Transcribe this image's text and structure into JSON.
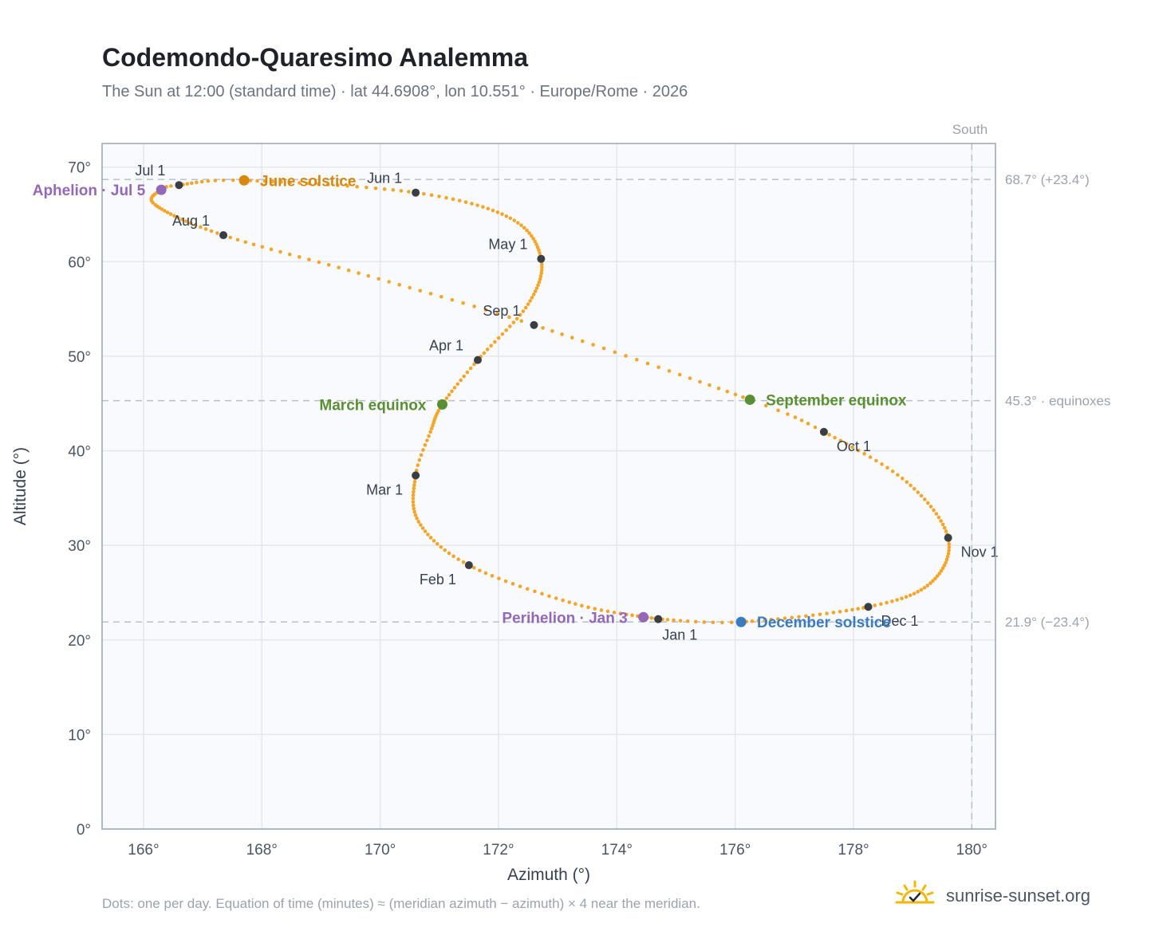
{
  "header": {
    "title": "Codemondo-Quaresimo Analemma",
    "subtitle": "The Sun at 12:00 (standard time) · lat 44.6908°, lon 10.551° · Europe/Rome · 2026"
  },
  "footer": {
    "note": "Dots: one per day. Equation of time (minutes) ≈ (meridian azimuth − azimuth) × 4 near the meridian.",
    "brand": "sunrise-sunset.org"
  },
  "colors": {
    "path": "#f4a52a",
    "month": "#3a3d44",
    "solstice_june": "#d6890e",
    "equinox": "#5a8f32",
    "solstice_december": "#3b7cc0",
    "apsis": "#9468b8",
    "plot_bg": "#f8fafd",
    "grid": "#e3e7ee",
    "frame": "#9aa5b5",
    "ref_line": "#b8c0cb"
  },
  "chart_data": {
    "type": "scatter",
    "title": "Codemondo-Quaresimo Analemma",
    "xlabel": "Azimuth (°)",
    "ylabel": "Altitude (°)",
    "xlim": [
      165.3,
      180.4
    ],
    "ylim": [
      0,
      72.5
    ],
    "x_ticks": [
      166,
      168,
      170,
      172,
      174,
      176,
      178,
      180
    ],
    "x_tick_labels": [
      "166°",
      "168°",
      "170°",
      "172°",
      "174°",
      "176°",
      "178°",
      "180°"
    ],
    "y_ticks": [
      0,
      10,
      20,
      30,
      40,
      50,
      60,
      70
    ],
    "y_tick_labels": [
      "0°",
      "10°",
      "20°",
      "30°",
      "40°",
      "50°",
      "60°",
      "70°"
    ],
    "grid": true,
    "south_label": "South",
    "south_azimuth": 180,
    "reference_lines": [
      {
        "altitude": 68.7,
        "label": "68.7° (+23.4°)"
      },
      {
        "altitude": 45.3,
        "label": "45.3° · equinoxes"
      },
      {
        "altitude": 21.9,
        "label": "21.9° (−23.4°)"
      }
    ],
    "daily_path_anchors": [
      {
        "day": 0,
        "az": 174.7,
        "alt": 22.2
      },
      {
        "day": 15,
        "az": 173.3,
        "alt": 23.8
      },
      {
        "day": 31,
        "az": 171.5,
        "alt": 27.9
      },
      {
        "day": 45,
        "az": 170.65,
        "alt": 32.5
      },
      {
        "day": 59,
        "az": 170.6,
        "alt": 37.4
      },
      {
        "day": 68,
        "az": 170.85,
        "alt": 42.0
      },
      {
        "day": 78,
        "az": 171.05,
        "alt": 44.9
      },
      {
        "day": 90,
        "az": 171.65,
        "alt": 49.6
      },
      {
        "day": 105,
        "az": 172.5,
        "alt": 55.5
      },
      {
        "day": 120,
        "az": 172.72,
        "alt": 60.3
      },
      {
        "day": 135,
        "az": 172.2,
        "alt": 64.6
      },
      {
        "day": 151,
        "az": 170.6,
        "alt": 67.3
      },
      {
        "day": 171,
        "az": 167.7,
        "alt": 68.6
      },
      {
        "day": 181,
        "az": 166.6,
        "alt": 68.1
      },
      {
        "day": 185,
        "az": 166.3,
        "alt": 67.6
      },
      {
        "day": 195,
        "az": 166.2,
        "alt": 66.0
      },
      {
        "day": 212,
        "az": 167.35,
        "alt": 62.8
      },
      {
        "day": 228,
        "az": 169.8,
        "alt": 58.5
      },
      {
        "day": 243,
        "az": 172.6,
        "alt": 53.3
      },
      {
        "day": 265,
        "az": 176.25,
        "alt": 45.4
      },
      {
        "day": 273,
        "az": 177.5,
        "alt": 42.0
      },
      {
        "day": 288,
        "az": 178.9,
        "alt": 36.7
      },
      {
        "day": 304,
        "az": 179.6,
        "alt": 30.8
      },
      {
        "day": 320,
        "az": 179.3,
        "alt": 26.0
      },
      {
        "day": 334,
        "az": 178.25,
        "alt": 23.5
      },
      {
        "day": 354,
        "az": 176.1,
        "alt": 21.9
      },
      {
        "day": 365,
        "az": 174.7,
        "alt": 22.2
      }
    ],
    "month_markers": [
      {
        "label": "Jan 1",
        "az": 174.7,
        "alt": 22.2,
        "lx": 5,
        "ly": 26,
        "anchor": "start"
      },
      {
        "label": "Feb 1",
        "az": 171.5,
        "alt": 27.9,
        "lx": -16,
        "ly": 24,
        "anchor": "end"
      },
      {
        "label": "Mar 1",
        "az": 170.6,
        "alt": 37.4,
        "lx": -16,
        "ly": 24,
        "anchor": "end"
      },
      {
        "label": "Apr 1",
        "az": 171.65,
        "alt": 49.6,
        "lx": -18,
        "ly": -12,
        "anchor": "end"
      },
      {
        "label": "May 1",
        "az": 172.72,
        "alt": 60.3,
        "lx": -17,
        "ly": -12,
        "anchor": "end"
      },
      {
        "label": "Jun 1",
        "az": 170.6,
        "alt": 67.3,
        "lx": -17,
        "ly": -12,
        "anchor": "end"
      },
      {
        "label": "Jul 1",
        "az": 166.6,
        "alt": 68.1,
        "lx": -17,
        "ly": -12,
        "anchor": "end"
      },
      {
        "label": "Aug 1",
        "az": 167.35,
        "alt": 62.8,
        "lx": -17,
        "ly": -12,
        "anchor": "end"
      },
      {
        "label": "Sep 1",
        "az": 172.6,
        "alt": 53.3,
        "lx": -17,
        "ly": -12,
        "anchor": "end"
      },
      {
        "label": "Oct 1",
        "az": 177.5,
        "alt": 42.0,
        "lx": 16,
        "ly": 24,
        "anchor": "start"
      },
      {
        "label": "Nov 1",
        "az": 179.6,
        "alt": 30.8,
        "lx": 16,
        "ly": 24,
        "anchor": "start"
      },
      {
        "label": "Dec 1",
        "az": 178.25,
        "alt": 23.5,
        "lx": 16,
        "ly": 24,
        "anchor": "start"
      }
    ],
    "events": [
      {
        "label": "June solstice",
        "az": 167.7,
        "alt": 68.6,
        "color": "#d6890e",
        "lx": 20,
        "ly": 7,
        "anchor": "start"
      },
      {
        "label": "March equinox",
        "az": 171.05,
        "alt": 44.9,
        "color": "#5a8f32",
        "lx": -20,
        "ly": 7,
        "anchor": "end"
      },
      {
        "label": "September equinox",
        "az": 176.25,
        "alt": 45.4,
        "color": "#5a8f32",
        "lx": 20,
        "ly": 7,
        "anchor": "start"
      },
      {
        "label": "December solstice",
        "az": 176.1,
        "alt": 21.9,
        "color": "#3b7cc0",
        "lx": 20,
        "ly": 7,
        "anchor": "start"
      },
      {
        "label": "Aphelion · Jul 5",
        "az": 166.3,
        "alt": 67.6,
        "color": "#9468b8",
        "lx": -20,
        "ly": 7,
        "anchor": "end"
      },
      {
        "label": "Perihelion · Jan 3",
        "az": 174.45,
        "alt": 22.4,
        "color": "#9468b8",
        "lx": -20,
        "ly": 7,
        "anchor": "end"
      }
    ]
  }
}
